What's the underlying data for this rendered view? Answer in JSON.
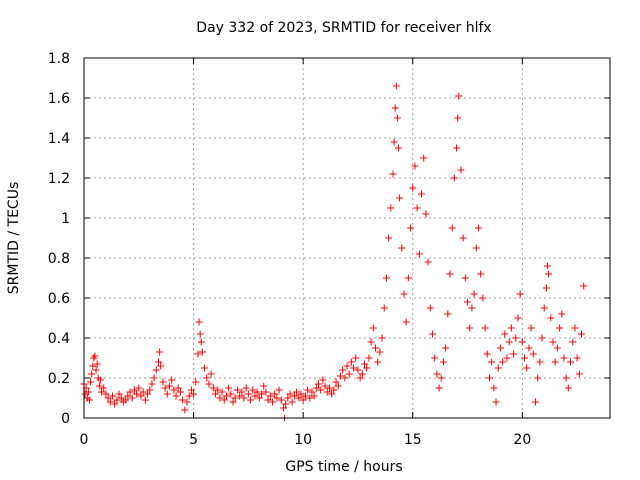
{
  "chart_data": {
    "type": "scatter",
    "title": "Day 332 of 2023, SRMTID for receiver hlfx",
    "xlabel": "GPS time / hours",
    "ylabel": "SRMTID / TECUs",
    "xlim": [
      0,
      24
    ],
    "ylim": [
      0,
      1.8
    ],
    "xticks": [
      0,
      5,
      10,
      15,
      20
    ],
    "xtick_labels": [
      "0",
      "5",
      "10",
      "15",
      "20"
    ],
    "yticks": [
      0,
      0.2,
      0.4,
      0.6,
      0.8,
      1.0,
      1.2,
      1.4,
      1.6,
      1.8
    ],
    "ytick_labels": [
      "0",
      "0.2",
      "0.4",
      "0.6",
      "0.8",
      "1",
      "1.2",
      "1.4",
      "1.6",
      "1.8"
    ],
    "grid": true,
    "marker": "plus",
    "marker_color": "#ff0000",
    "x_data_range": [
      0,
      22.8
    ],
    "series": [
      {
        "name": "SRMTID",
        "points": [
          [
            0.0,
            0.17
          ],
          [
            0.05,
            0.12
          ],
          [
            0.1,
            0.15
          ],
          [
            0.15,
            0.1
          ],
          [
            0.2,
            0.13
          ],
          [
            0.25,
            0.09
          ],
          [
            0.3,
            0.18
          ],
          [
            0.35,
            0.22
          ],
          [
            0.4,
            0.26
          ],
          [
            0.45,
            0.3
          ],
          [
            0.5,
            0.31
          ],
          [
            0.55,
            0.24
          ],
          [
            0.6,
            0.27
          ],
          [
            0.65,
            0.2
          ],
          [
            0.7,
            0.16
          ],
          [
            0.75,
            0.19
          ],
          [
            0.8,
            0.13
          ],
          [
            0.9,
            0.15
          ],
          [
            1.0,
            0.12
          ],
          [
            1.1,
            0.1
          ],
          [
            1.2,
            0.08
          ],
          [
            1.3,
            0.11
          ],
          [
            1.4,
            0.07
          ],
          [
            1.5,
            0.09
          ],
          [
            1.6,
            0.12
          ],
          [
            1.7,
            0.1
          ],
          [
            1.8,
            0.08
          ],
          [
            1.9,
            0.09
          ],
          [
            2.0,
            0.11
          ],
          [
            2.1,
            0.13
          ],
          [
            2.2,
            0.1
          ],
          [
            2.3,
            0.14
          ],
          [
            2.4,
            0.12
          ],
          [
            2.5,
            0.15
          ],
          [
            2.6,
            0.11
          ],
          [
            2.7,
            0.13
          ],
          [
            2.8,
            0.09
          ],
          [
            2.9,
            0.12
          ],
          [
            3.0,
            0.14
          ],
          [
            3.1,
            0.17
          ],
          [
            3.2,
            0.2
          ],
          [
            3.3,
            0.24
          ],
          [
            3.4,
            0.28
          ],
          [
            3.45,
            0.33
          ],
          [
            3.5,
            0.26
          ],
          [
            3.6,
            0.18
          ],
          [
            3.7,
            0.15
          ],
          [
            3.8,
            0.12
          ],
          [
            3.9,
            0.16
          ],
          [
            4.0,
            0.19
          ],
          [
            4.1,
            0.14
          ],
          [
            4.2,
            0.11
          ],
          [
            4.3,
            0.15
          ],
          [
            4.4,
            0.13
          ],
          [
            4.5,
            0.09
          ],
          [
            4.6,
            0.04
          ],
          [
            4.7,
            0.08
          ],
          [
            4.8,
            0.11
          ],
          [
            4.9,
            0.14
          ],
          [
            5.0,
            0.12
          ],
          [
            5.1,
            0.18
          ],
          [
            5.2,
            0.32
          ],
          [
            5.25,
            0.48
          ],
          [
            5.3,
            0.42
          ],
          [
            5.35,
            0.38
          ],
          [
            5.4,
            0.33
          ],
          [
            5.5,
            0.25
          ],
          [
            5.6,
            0.2
          ],
          [
            5.7,
            0.17
          ],
          [
            5.8,
            0.22
          ],
          [
            5.9,
            0.15
          ],
          [
            6.0,
            0.12
          ],
          [
            6.1,
            0.14
          ],
          [
            6.2,
            0.1
          ],
          [
            6.3,
            0.13
          ],
          [
            6.4,
            0.09
          ],
          [
            6.5,
            0.11
          ],
          [
            6.6,
            0.15
          ],
          [
            6.7,
            0.12
          ],
          [
            6.8,
            0.08
          ],
          [
            6.9,
            0.1
          ],
          [
            7.0,
            0.14
          ],
          [
            7.1,
            0.11
          ],
          [
            7.2,
            0.13
          ],
          [
            7.3,
            0.1
          ],
          [
            7.4,
            0.15
          ],
          [
            7.5,
            0.12
          ],
          [
            7.6,
            0.09
          ],
          [
            7.7,
            0.14
          ],
          [
            7.8,
            0.11
          ],
          [
            7.9,
            0.13
          ],
          [
            8.0,
            0.1
          ],
          [
            8.1,
            0.12
          ],
          [
            8.2,
            0.16
          ],
          [
            8.3,
            0.13
          ],
          [
            8.4,
            0.09
          ],
          [
            8.5,
            0.11
          ],
          [
            8.6,
            0.08
          ],
          [
            8.7,
            0.12
          ],
          [
            8.8,
            0.1
          ],
          [
            8.9,
            0.14
          ],
          [
            9.0,
            0.09
          ],
          [
            9.1,
            0.05
          ],
          [
            9.15,
            0.0
          ],
          [
            9.2,
            0.07
          ],
          [
            9.3,
            0.1
          ],
          [
            9.4,
            0.12
          ],
          [
            9.5,
            0.08
          ],
          [
            9.6,
            0.11
          ],
          [
            9.7,
            0.13
          ],
          [
            9.8,
            0.1
          ],
          [
            9.9,
            0.12
          ],
          [
            10.0,
            0.09
          ],
          [
            10.1,
            0.11
          ],
          [
            10.2,
            0.14
          ],
          [
            10.3,
            0.1
          ],
          [
            10.4,
            0.13
          ],
          [
            10.5,
            0.11
          ],
          [
            10.6,
            0.15
          ],
          [
            10.7,
            0.17
          ],
          [
            10.8,
            0.14
          ],
          [
            10.9,
            0.19
          ],
          [
            11.0,
            0.16
          ],
          [
            11.1,
            0.13
          ],
          [
            11.2,
            0.15
          ],
          [
            11.3,
            0.12
          ],
          [
            11.4,
            0.14
          ],
          [
            11.5,
            0.18
          ],
          [
            11.6,
            0.16
          ],
          [
            11.7,
            0.21
          ],
          [
            11.8,
            0.24
          ],
          [
            11.9,
            0.2
          ],
          [
            12.0,
            0.26
          ],
          [
            12.1,
            0.22
          ],
          [
            12.2,
            0.28
          ],
          [
            12.3,
            0.25
          ],
          [
            12.4,
            0.3
          ],
          [
            12.5,
            0.24
          ],
          [
            12.6,
            0.2
          ],
          [
            12.7,
            0.22
          ],
          [
            12.8,
            0.27
          ],
          [
            12.9,
            0.25
          ],
          [
            13.0,
            0.3
          ],
          [
            13.1,
            0.38
          ],
          [
            13.2,
            0.45
          ],
          [
            13.3,
            0.35
          ],
          [
            13.4,
            0.28
          ],
          [
            13.5,
            0.33
          ],
          [
            13.6,
            0.4
          ],
          [
            13.7,
            0.55
          ],
          [
            13.8,
            0.7
          ],
          [
            13.9,
            0.9
          ],
          [
            14.0,
            1.05
          ],
          [
            14.1,
            1.22
          ],
          [
            14.15,
            1.38
          ],
          [
            14.2,
            1.55
          ],
          [
            14.25,
            1.66
          ],
          [
            14.3,
            1.5
          ],
          [
            14.35,
            1.35
          ],
          [
            14.4,
            1.1
          ],
          [
            14.5,
            0.85
          ],
          [
            14.6,
            0.62
          ],
          [
            14.7,
            0.48
          ],
          [
            14.8,
            0.7
          ],
          [
            14.9,
            0.95
          ],
          [
            15.0,
            1.15
          ],
          [
            15.1,
            1.26
          ],
          [
            15.2,
            1.05
          ],
          [
            15.3,
            0.82
          ],
          [
            15.4,
            1.12
          ],
          [
            15.5,
            1.3
          ],
          [
            15.6,
            1.02
          ],
          [
            15.7,
            0.78
          ],
          [
            15.8,
            0.55
          ],
          [
            15.9,
            0.42
          ],
          [
            16.0,
            0.3
          ],
          [
            16.1,
            0.22
          ],
          [
            16.2,
            0.15
          ],
          [
            16.3,
            0.2
          ],
          [
            16.4,
            0.28
          ],
          [
            16.5,
            0.35
          ],
          [
            16.6,
            0.52
          ],
          [
            16.7,
            0.72
          ],
          [
            16.8,
            0.95
          ],
          [
            16.9,
            1.2
          ],
          [
            17.0,
            1.35
          ],
          [
            17.05,
            1.5
          ],
          [
            17.1,
            1.61
          ],
          [
            17.2,
            1.24
          ],
          [
            17.3,
            0.9
          ],
          [
            17.4,
            0.7
          ],
          [
            17.5,
            0.58
          ],
          [
            17.6,
            0.45
          ],
          [
            17.7,
            0.55
          ],
          [
            17.8,
            0.62
          ],
          [
            17.9,
            0.85
          ],
          [
            18.0,
            0.95
          ],
          [
            18.1,
            0.72
          ],
          [
            18.2,
            0.6
          ],
          [
            18.3,
            0.45
          ],
          [
            18.4,
            0.32
          ],
          [
            18.5,
            0.2
          ],
          [
            18.6,
            0.28
          ],
          [
            18.7,
            0.15
          ],
          [
            18.8,
            0.08
          ],
          [
            18.9,
            0.25
          ],
          [
            19.0,
            0.35
          ],
          [
            19.1,
            0.28
          ],
          [
            19.2,
            0.42
          ],
          [
            19.3,
            0.3
          ],
          [
            19.4,
            0.38
          ],
          [
            19.5,
            0.45
          ],
          [
            19.6,
            0.32
          ],
          [
            19.7,
            0.4
          ],
          [
            19.8,
            0.5
          ],
          [
            19.9,
            0.62
          ],
          [
            20.0,
            0.38
          ],
          [
            20.1,
            0.3
          ],
          [
            20.2,
            0.25
          ],
          [
            20.3,
            0.35
          ],
          [
            20.4,
            0.45
          ],
          [
            20.5,
            0.32
          ],
          [
            20.6,
            0.08
          ],
          [
            20.7,
            0.2
          ],
          [
            20.8,
            0.28
          ],
          [
            20.9,
            0.4
          ],
          [
            21.0,
            0.55
          ],
          [
            21.1,
            0.65
          ],
          [
            21.15,
            0.76
          ],
          [
            21.2,
            0.72
          ],
          [
            21.3,
            0.5
          ],
          [
            21.4,
            0.38
          ],
          [
            21.5,
            0.28
          ],
          [
            21.6,
            0.35
          ],
          [
            21.7,
            0.45
          ],
          [
            21.8,
            0.52
          ],
          [
            21.9,
            0.3
          ],
          [
            22.0,
            0.2
          ],
          [
            22.1,
            0.15
          ],
          [
            22.2,
            0.28
          ],
          [
            22.3,
            0.38
          ],
          [
            22.4,
            0.45
          ],
          [
            22.5,
            0.3
          ],
          [
            22.6,
            0.22
          ],
          [
            22.7,
            0.42
          ],
          [
            22.8,
            0.66
          ]
        ]
      }
    ]
  }
}
